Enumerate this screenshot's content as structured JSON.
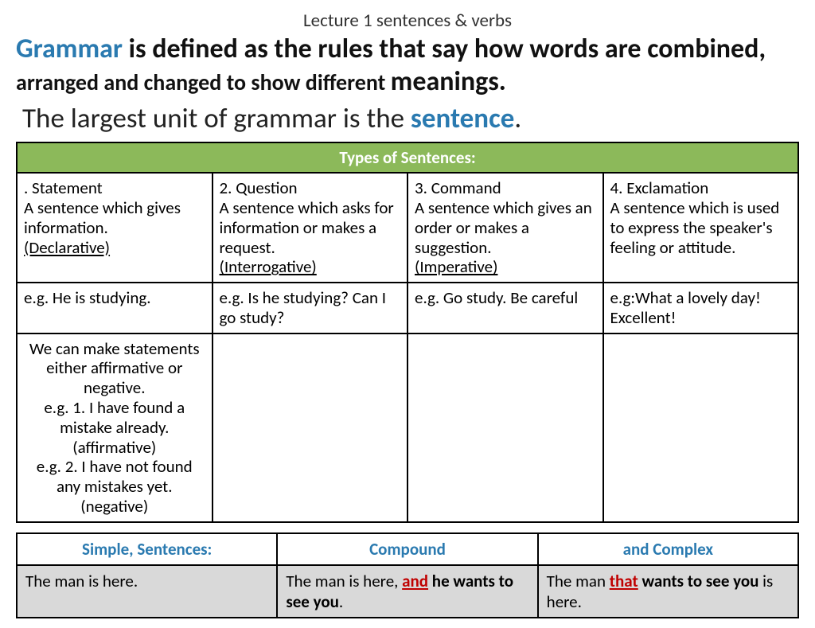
{
  "lecture_title": "Lecture 1  sentences  &  verbs",
  "definition": {
    "grammar": "Grammar",
    "part1": " is defined as the rules that say how words are combined,",
    "mid": " arranged and changed to show different ",
    "meanings": "meanings."
  },
  "unit_line": {
    "pre": "The largest unit of grammar is the ",
    "sentence": "sentence",
    "post": "."
  },
  "types": {
    "header": "Types of Sentences:",
    "cols": [
      {
        "title": ". Statement",
        "desc": " A sentence which gives information.",
        "term": "(Declarative)"
      },
      {
        "title": "2. Question",
        "desc": "A sentence which asks for information or makes a request.",
        "term": "(Interrogative)"
      },
      {
        "title": "3. Command",
        "desc": "A sentence which gives an order or makes a suggestion.",
        "term": "(Imperative)"
      },
      {
        "title": "4. Exclamation",
        "desc": "A sentence which is used to express the speaker's feeling or attitude.",
        "term": ""
      }
    ],
    "examples": [
      "e.g. He is studying.",
      "e.g. Is he studying? Can I go study?",
      "e.g.  Go study. Be careful",
      "e.g:What a lovely day! Excellent!"
    ],
    "note": "We can make statements either affirmative or negative.\ne.g. 1. I have found a mistake already. (affirmative)\ne.g. 2. I have not found any mistakes yet. (negative)"
  },
  "scc": {
    "headers": [
      "Simple, Sentences:",
      "Compound",
      "and Complex"
    ],
    "cells": {
      "simple": "The man is here.",
      "compound_pre": " The man is here, ",
      "compound_conj": "and",
      "compound_post": " he wants to see you",
      "compound_end": ".",
      "complex_pre": " The man ",
      "complex_conj": "that",
      "complex_post": " wants to see you",
      "complex_end": " is here."
    }
  },
  "colors": {
    "accent_blue": "#2a7ab0",
    "header_green": "#8cb95a",
    "row_gray": "#d9d9d9",
    "red": "#c00000",
    "border": "#000000",
    "background": "#ffffff"
  }
}
